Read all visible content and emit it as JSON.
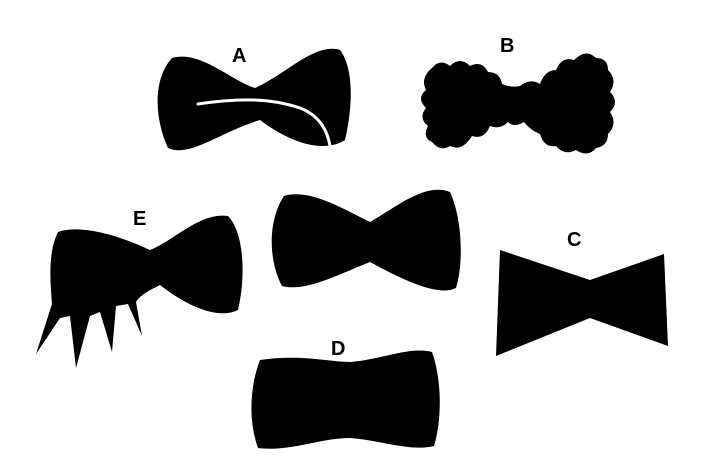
{
  "labels": {
    "a": "A",
    "b": "B",
    "c": "C",
    "d": "D",
    "e": "E"
  },
  "colors": {
    "shape": "#000000",
    "background": "#ffffff",
    "highlight_line": "#ffffff"
  }
}
